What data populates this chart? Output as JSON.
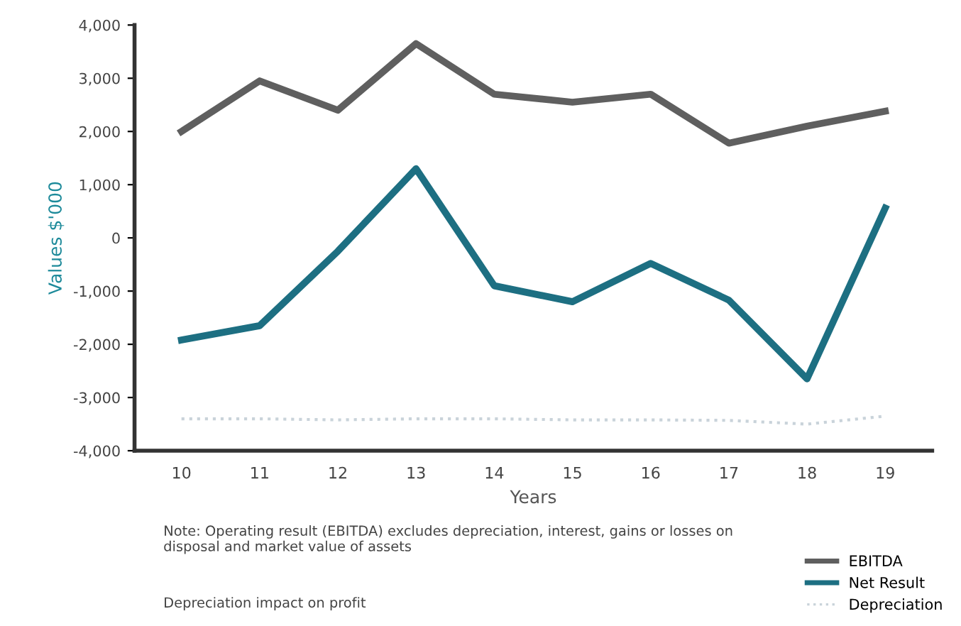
{
  "chart_data": {
    "type": "line",
    "xlabel": "Years",
    "ylabel": "Values $'000",
    "categories": [
      "10",
      "11",
      "12",
      "13",
      "14",
      "15",
      "16",
      "17",
      "18",
      "19"
    ],
    "series": [
      {
        "name": "EBITDA",
        "color": "#5f5f5f",
        "values": [
          2000,
          2950,
          2400,
          3650,
          2700,
          2550,
          2700,
          1780,
          2100,
          2380
        ]
      },
      {
        "name": "Net Result",
        "color": "#1d6f82",
        "values": [
          -1920,
          -1650,
          -250,
          1300,
          -900,
          -1200,
          -480,
          -1170,
          -2650,
          560
        ]
      },
      {
        "name": "Depreciation",
        "color": "#c9d3da",
        "line_style": "dotted",
        "values": [
          -3400,
          -3400,
          -3420,
          -3400,
          -3400,
          -3420,
          -3420,
          -3430,
          -3500,
          -3350
        ]
      }
    ],
    "ylim": [
      -4000,
      4000
    ],
    "yticks": [
      {
        "value": -4000,
        "label": "-4,000"
      },
      {
        "value": -3000,
        "label": "-3,000"
      },
      {
        "value": -2000,
        "label": "-2,000"
      },
      {
        "value": -1000,
        "label": "-1,000"
      },
      0,
      {
        "value": 1000,
        "label": "1,000"
      },
      {
        "value": 2000,
        "label": "2,000"
      },
      {
        "value": 3000,
        "label": "3,000"
      },
      {
        "value": 4000,
        "label": "4,000"
      }
    ],
    "grid": false,
    "legend": "bottom right",
    "marker": "none",
    "line_style": "solid",
    "annotations": [
      "Note: Operating result (EBITDA) excludes depreciation, interest, gains or losses on disposal and market value of assets",
      "Depreciation impact on profit"
    ]
  }
}
